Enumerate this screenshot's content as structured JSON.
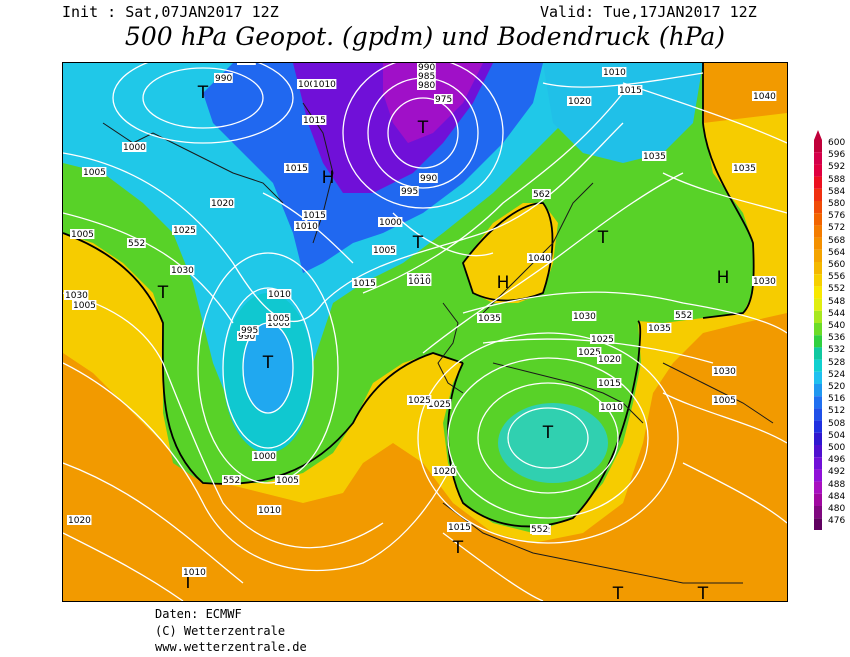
{
  "header": {
    "init": "Init : Sat,07JAN2017 12Z",
    "valid": "Valid: Tue,17JAN2017 12Z",
    "title": "500 hPa Geopot. (gpdm) und Bodendruck (hPa)"
  },
  "footer": {
    "line1": "Daten: ECMWF",
    "line2": "(C) Wetterzentrale",
    "line3": "www.wetterzentrale.de"
  },
  "legend": {
    "values": [
      "600",
      "596",
      "592",
      "588",
      "584",
      "580",
      "576",
      "572",
      "568",
      "564",
      "560",
      "556",
      "552",
      "548",
      "544",
      "540",
      "536",
      "532",
      "528",
      "524",
      "520",
      "516",
      "512",
      "508",
      "504",
      "500",
      "496",
      "492",
      "488",
      "484",
      "480",
      "476"
    ],
    "colors": [
      "#c0003a",
      "#d4004a",
      "#e00040",
      "#ec1020",
      "#f03010",
      "#f04c08",
      "#f26400",
      "#f47c00",
      "#f49000",
      "#f4a400",
      "#f4b800",
      "#f6d000",
      "#f8e800",
      "#e0ee10",
      "#a8e820",
      "#6cdc28",
      "#30d040",
      "#10c8a0",
      "#10d0d0",
      "#20c0f0",
      "#2098f0",
      "#2070f0",
      "#2050e8",
      "#2030e0",
      "#3018d0",
      "#5010d0",
      "#7010d8",
      "#9010d8",
      "#a810c0",
      "#a008a0",
      "#800880",
      "#600060"
    ]
  },
  "map": {
    "centers": [
      {
        "label": "T"
      },
      {
        "label": "T"
      },
      {
        "label": "H"
      },
      {
        "label": "T"
      },
      {
        "label": "T"
      },
      {
        "label": "H"
      },
      {
        "label": "T"
      },
      {
        "label": "T"
      },
      {
        "label": "T"
      },
      {
        "label": "H"
      },
      {
        "label": "T"
      },
      {
        "label": "T"
      },
      {
        "label": "T"
      },
      {
        "label": "T"
      }
    ],
    "isobar_labels": [
      "990",
      "995",
      "1005",
      "1010",
      "990",
      "985",
      "980",
      "975",
      "1010",
      "1015",
      "1020",
      "1040",
      "1000",
      "1015",
      "1005",
      "1015",
      "990",
      "995",
      "1020",
      "1015",
      "1010",
      "1000",
      "1005",
      "1035",
      "1035",
      "1025",
      "1030",
      "1010",
      "1005",
      "562",
      "1040",
      "1015",
      "1005",
      "552",
      "1030",
      "1010",
      "1025",
      "1035",
      "1030",
      "1025",
      "1015",
      "1020",
      "1010",
      "1005",
      "1030",
      "552",
      "1035",
      "1030",
      "1025",
      "1010",
      "1000",
      "990",
      "995",
      "1000",
      "1005",
      "1025",
      "1020",
      "1005",
      "552",
      "1010",
      "1020",
      "1015",
      "552",
      "1010",
      "1020",
      "552"
    ]
  }
}
